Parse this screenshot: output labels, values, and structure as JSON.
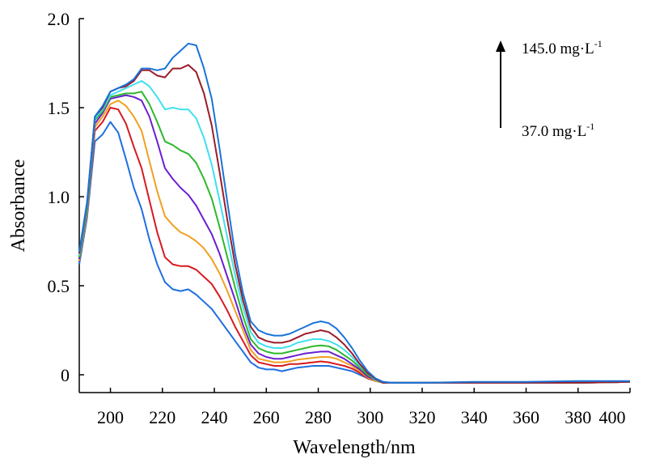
{
  "chart_data": {
    "type": "line",
    "title": "",
    "xlabel": "Wavelength/nm",
    "ylabel": "Absorbance",
    "xlim": [
      188,
      400
    ],
    "ylim": [
      -0.1,
      2.0
    ],
    "xticks": [
      200,
      220,
      240,
      260,
      280,
      300,
      320,
      340,
      360,
      380,
      400
    ],
    "yticks": [
      0,
      0.5,
      1.0,
      1.5,
      2.0
    ],
    "ytick_labels": [
      "0",
      "0.5",
      "1.0",
      "1.5",
      "2.0"
    ],
    "grid": false,
    "legend": "none",
    "annotations": {
      "top_label": "145.0 mg·L",
      "top_sup": "-1",
      "bottom_label": "37.0 mg·L",
      "bottom_sup": "-1",
      "arrow": "up"
    },
    "x": [
      188,
      191,
      194,
      197,
      200,
      203,
      206,
      209,
      212,
      215,
      218,
      221,
      224,
      227,
      230,
      233,
      236,
      239,
      242,
      245,
      248,
      251,
      254,
      257,
      260,
      263,
      266,
      269,
      272,
      275,
      278,
      281,
      284,
      287,
      290,
      293,
      296,
      299,
      302,
      305,
      308,
      311,
      320,
      340,
      360,
      380,
      400
    ],
    "series": [
      {
        "color": "#1f6fe0",
        "values": [
          0.62,
          0.88,
          1.31,
          1.35,
          1.42,
          1.36,
          1.21,
          1.05,
          0.93,
          0.76,
          0.62,
          0.52,
          0.48,
          0.47,
          0.48,
          0.45,
          0.41,
          0.37,
          0.31,
          0.25,
          0.19,
          0.13,
          0.07,
          0.04,
          0.03,
          0.03,
          0.02,
          0.03,
          0.04,
          0.045,
          0.05,
          0.05,
          0.05,
          0.04,
          0.03,
          0.02,
          0.0,
          -0.02,
          -0.035,
          -0.04,
          -0.045,
          -0.045,
          -0.045,
          -0.045,
          -0.045,
          -0.04,
          -0.04
        ]
      },
      {
        "color": "#d71920",
        "values": [
          0.64,
          0.9,
          1.37,
          1.42,
          1.5,
          1.49,
          1.41,
          1.28,
          1.16,
          0.98,
          0.8,
          0.66,
          0.62,
          0.61,
          0.61,
          0.59,
          0.55,
          0.51,
          0.44,
          0.36,
          0.27,
          0.19,
          0.11,
          0.07,
          0.06,
          0.05,
          0.05,
          0.06,
          0.06,
          0.065,
          0.07,
          0.075,
          0.07,
          0.06,
          0.05,
          0.035,
          0.01,
          -0.02,
          -0.035,
          -0.045,
          -0.045,
          -0.045,
          -0.045,
          -0.045,
          -0.045,
          -0.045,
          -0.04
        ]
      },
      {
        "color": "#f0a020",
        "values": [
          0.64,
          0.9,
          1.39,
          1.45,
          1.52,
          1.54,
          1.51,
          1.45,
          1.37,
          1.2,
          1.03,
          0.89,
          0.84,
          0.8,
          0.78,
          0.75,
          0.71,
          0.65,
          0.57,
          0.47,
          0.36,
          0.25,
          0.14,
          0.09,
          0.08,
          0.07,
          0.07,
          0.075,
          0.085,
          0.09,
          0.095,
          0.1,
          0.1,
          0.09,
          0.07,
          0.05,
          0.02,
          -0.015,
          -0.035,
          -0.045,
          -0.045,
          -0.045,
          -0.045,
          -0.045,
          -0.045,
          -0.045,
          -0.04
        ]
      },
      {
        "color": "#6a1fd0",
        "values": [
          0.65,
          0.92,
          1.41,
          1.47,
          1.55,
          1.56,
          1.57,
          1.56,
          1.54,
          1.45,
          1.31,
          1.16,
          1.1,
          1.05,
          1.01,
          0.95,
          0.87,
          0.79,
          0.68,
          0.55,
          0.42,
          0.28,
          0.17,
          0.12,
          0.1,
          0.09,
          0.09,
          0.1,
          0.11,
          0.12,
          0.125,
          0.13,
          0.13,
          0.11,
          0.09,
          0.06,
          0.03,
          -0.01,
          -0.03,
          -0.045,
          -0.045,
          -0.045,
          -0.045,
          -0.045,
          -0.045,
          -0.045,
          -0.04
        ]
      },
      {
        "color": "#2db82d",
        "values": [
          0.66,
          0.93,
          1.43,
          1.48,
          1.56,
          1.57,
          1.58,
          1.58,
          1.59,
          1.52,
          1.42,
          1.31,
          1.29,
          1.26,
          1.24,
          1.19,
          1.1,
          0.99,
          0.83,
          0.66,
          0.49,
          0.33,
          0.2,
          0.15,
          0.13,
          0.12,
          0.12,
          0.13,
          0.14,
          0.15,
          0.16,
          0.165,
          0.16,
          0.14,
          0.11,
          0.08,
          0.04,
          0.0,
          -0.03,
          -0.045,
          -0.045,
          -0.045,
          -0.045,
          -0.045,
          -0.045,
          -0.045,
          -0.04
        ]
      },
      {
        "color": "#40e0f0",
        "values": [
          0.67,
          0.95,
          1.44,
          1.49,
          1.57,
          1.59,
          1.61,
          1.63,
          1.65,
          1.62,
          1.56,
          1.49,
          1.5,
          1.49,
          1.49,
          1.44,
          1.33,
          1.18,
          0.98,
          0.77,
          0.56,
          0.38,
          0.24,
          0.18,
          0.16,
          0.15,
          0.15,
          0.16,
          0.18,
          0.19,
          0.2,
          0.2,
          0.19,
          0.17,
          0.14,
          0.1,
          0.05,
          0.01,
          -0.03,
          -0.045,
          -0.045,
          -0.045,
          -0.045,
          -0.045,
          -0.045,
          -0.045,
          -0.04
        ]
      },
      {
        "color": "#9b1c2a",
        "values": [
          0.68,
          0.96,
          1.45,
          1.5,
          1.59,
          1.61,
          1.62,
          1.65,
          1.71,
          1.71,
          1.68,
          1.67,
          1.72,
          1.72,
          1.74,
          1.7,
          1.58,
          1.4,
          1.14,
          0.87,
          0.62,
          0.42,
          0.27,
          0.21,
          0.19,
          0.18,
          0.18,
          0.19,
          0.21,
          0.23,
          0.24,
          0.25,
          0.24,
          0.21,
          0.17,
          0.12,
          0.06,
          0.01,
          -0.025,
          -0.045,
          -0.045,
          -0.045,
          -0.045,
          -0.045,
          -0.045,
          -0.045,
          -0.04
        ]
      },
      {
        "color": "#1a73d9",
        "values": [
          0.69,
          0.97,
          1.45,
          1.51,
          1.59,
          1.61,
          1.63,
          1.66,
          1.72,
          1.72,
          1.71,
          1.72,
          1.78,
          1.82,
          1.86,
          1.85,
          1.72,
          1.55,
          1.27,
          0.97,
          0.68,
          0.46,
          0.3,
          0.25,
          0.23,
          0.22,
          0.22,
          0.23,
          0.25,
          0.27,
          0.29,
          0.3,
          0.29,
          0.26,
          0.21,
          0.15,
          0.08,
          0.02,
          -0.02,
          -0.04,
          -0.045,
          -0.045,
          -0.045,
          -0.04,
          -0.04,
          -0.035,
          -0.035
        ]
      }
    ]
  }
}
